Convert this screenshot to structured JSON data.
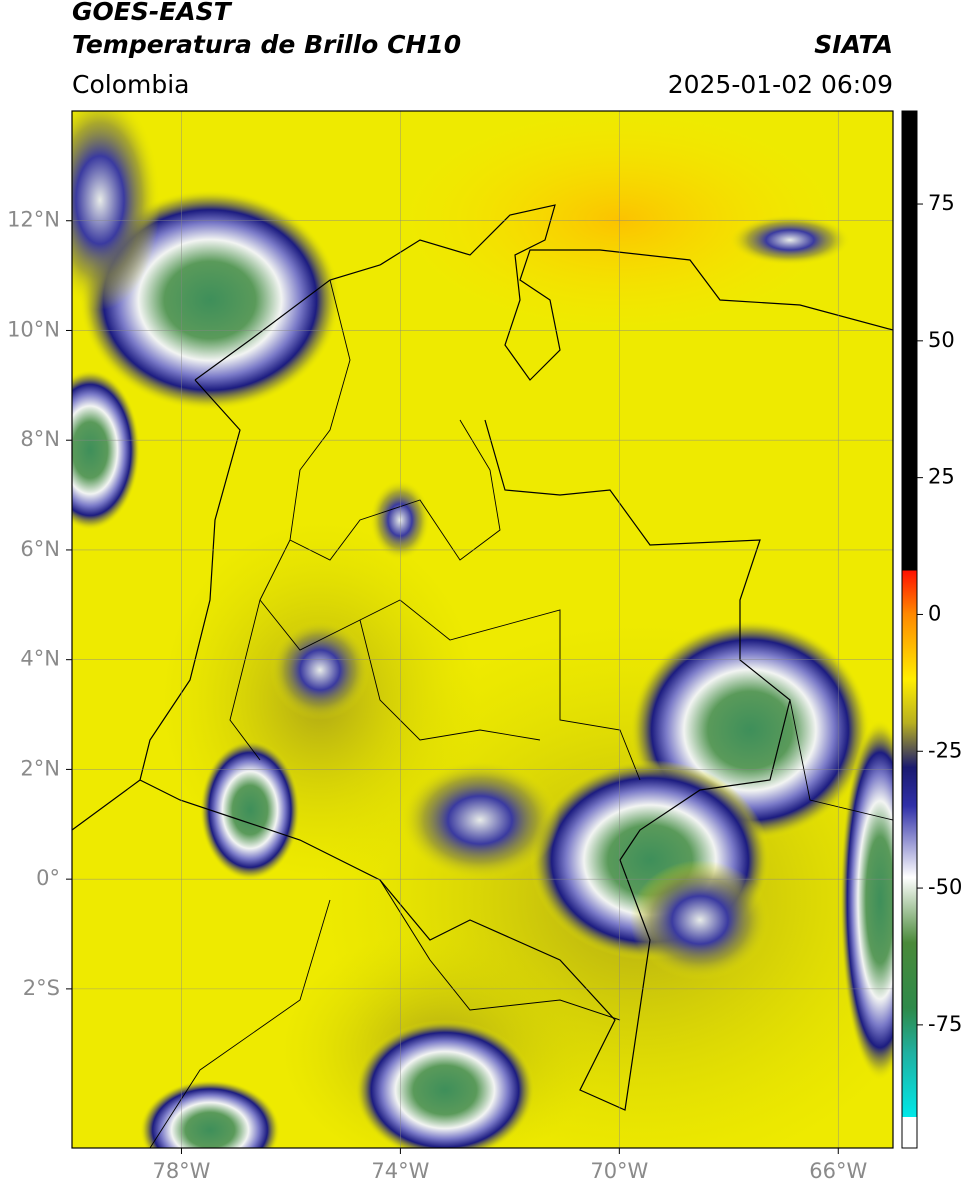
{
  "header": {
    "title": "GOES-EAST",
    "subtitle": "Temperatura de Brillo CH10",
    "source": "SIATA",
    "region": "Colombia",
    "datetime": "2025-01-02 06:09"
  },
  "map": {
    "xlim": [
      -80,
      -65
    ],
    "ylim": [
      -4.9,
      14
    ],
    "xticks": [
      {
        "value": -78,
        "label": "78°W"
      },
      {
        "value": -74,
        "label": "74°W"
      },
      {
        "value": -70,
        "label": "70°W"
      },
      {
        "value": -66,
        "label": "66°W"
      }
    ],
    "yticks": [
      {
        "value": 12,
        "label": "12°N"
      },
      {
        "value": 10,
        "label": "10°N"
      },
      {
        "value": 8,
        "label": "8°N"
      },
      {
        "value": 6,
        "label": "6°N"
      },
      {
        "value": 4,
        "label": "4°N"
      },
      {
        "value": 2,
        "label": "2°N"
      },
      {
        "value": 0,
        "label": "0°"
      },
      {
        "value": -2,
        "label": "2°S"
      }
    ],
    "grid": true
  },
  "colorbar": {
    "lim": [
      -97.5,
      92
    ],
    "ticks": [
      75,
      50,
      25,
      0,
      -25,
      -50,
      -75
    ]
  }
}
